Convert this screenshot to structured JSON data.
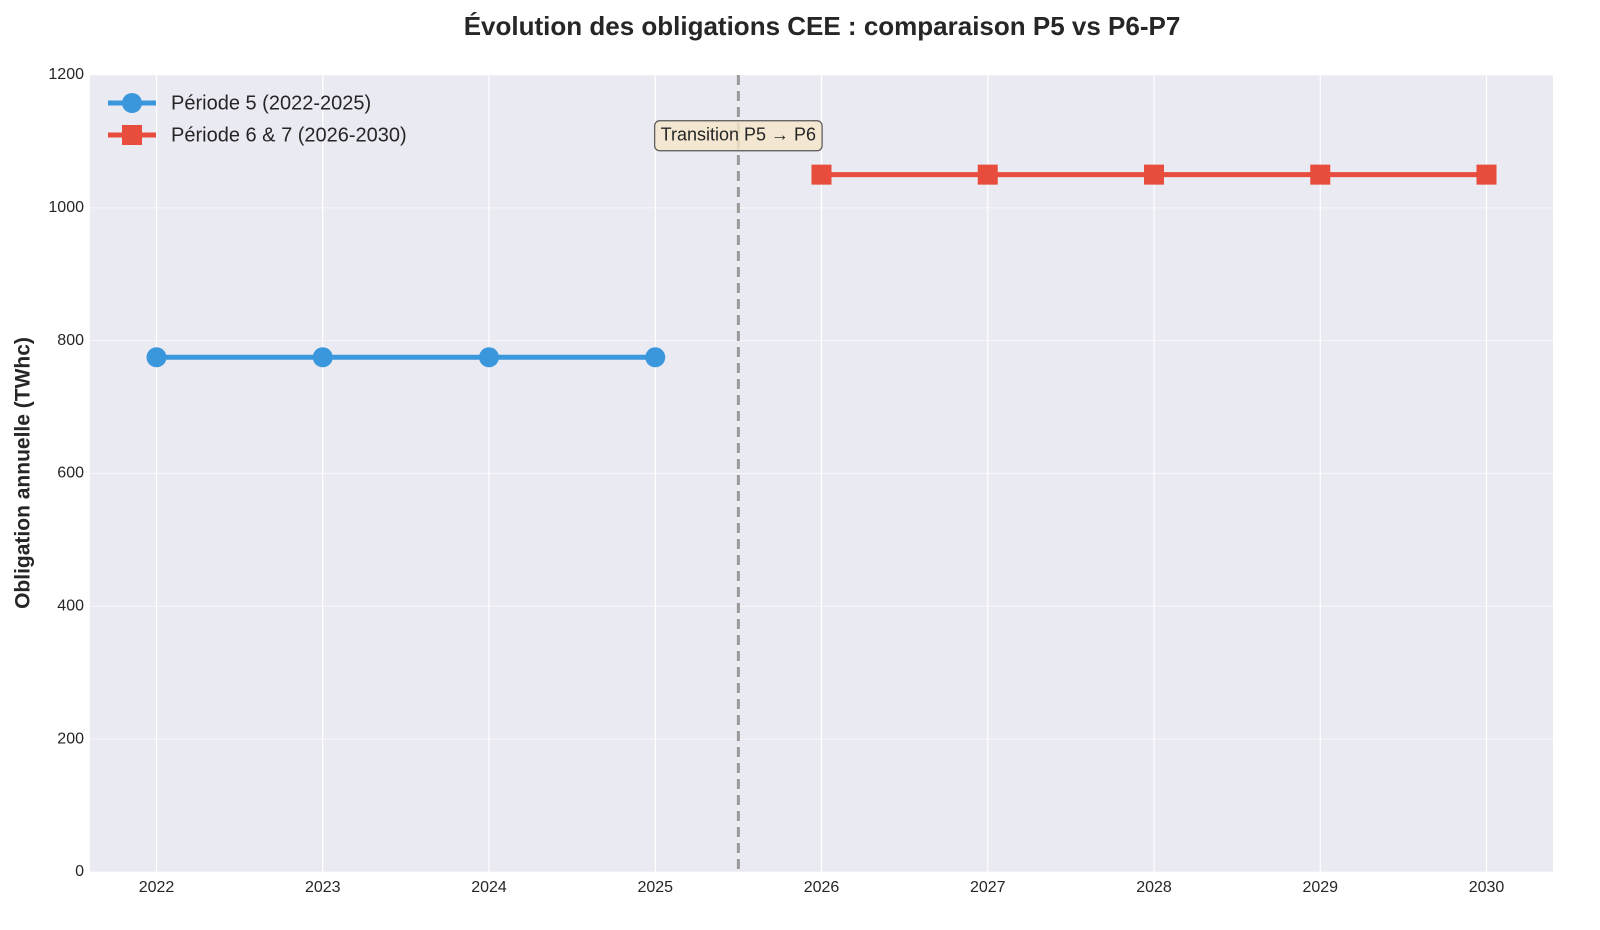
{
  "chart_data": {
    "type": "line",
    "title": "Évolution des obligations CEE : comparaison P5 vs P6-P7",
    "y_label": "Obligation annuelle (TWhc)",
    "series": [
      {
        "name": "Période 5 (2022-2025)",
        "color": "#3b97dc",
        "marker": "circle",
        "x": [
          2022,
          2023,
          2024,
          2025
        ],
        "values": [
          775,
          775,
          775,
          775
        ]
      },
      {
        "name": "Période 6 & 7 (2026-2030)",
        "color": "#e74c3c",
        "marker": "square",
        "x": [
          2026,
          2027,
          2028,
          2029,
          2030
        ],
        "values": [
          1050,
          1050,
          1050,
          1050,
          1050
        ]
      }
    ],
    "xlim": [
      2021.6,
      2030.4
    ],
    "xticks": [
      2022,
      2023,
      2024,
      2025,
      2026,
      2027,
      2028,
      2029,
      2030
    ],
    "ylim": [
      0,
      1200
    ],
    "yticks": [
      0,
      200,
      400,
      600,
      800,
      1000,
      1200
    ],
    "grid": true,
    "legend": "upper left",
    "vline": 2025.5,
    "annotation": {
      "text": "Transition P5 → P6",
      "x": 2025.5,
      "y": 1110
    }
  }
}
